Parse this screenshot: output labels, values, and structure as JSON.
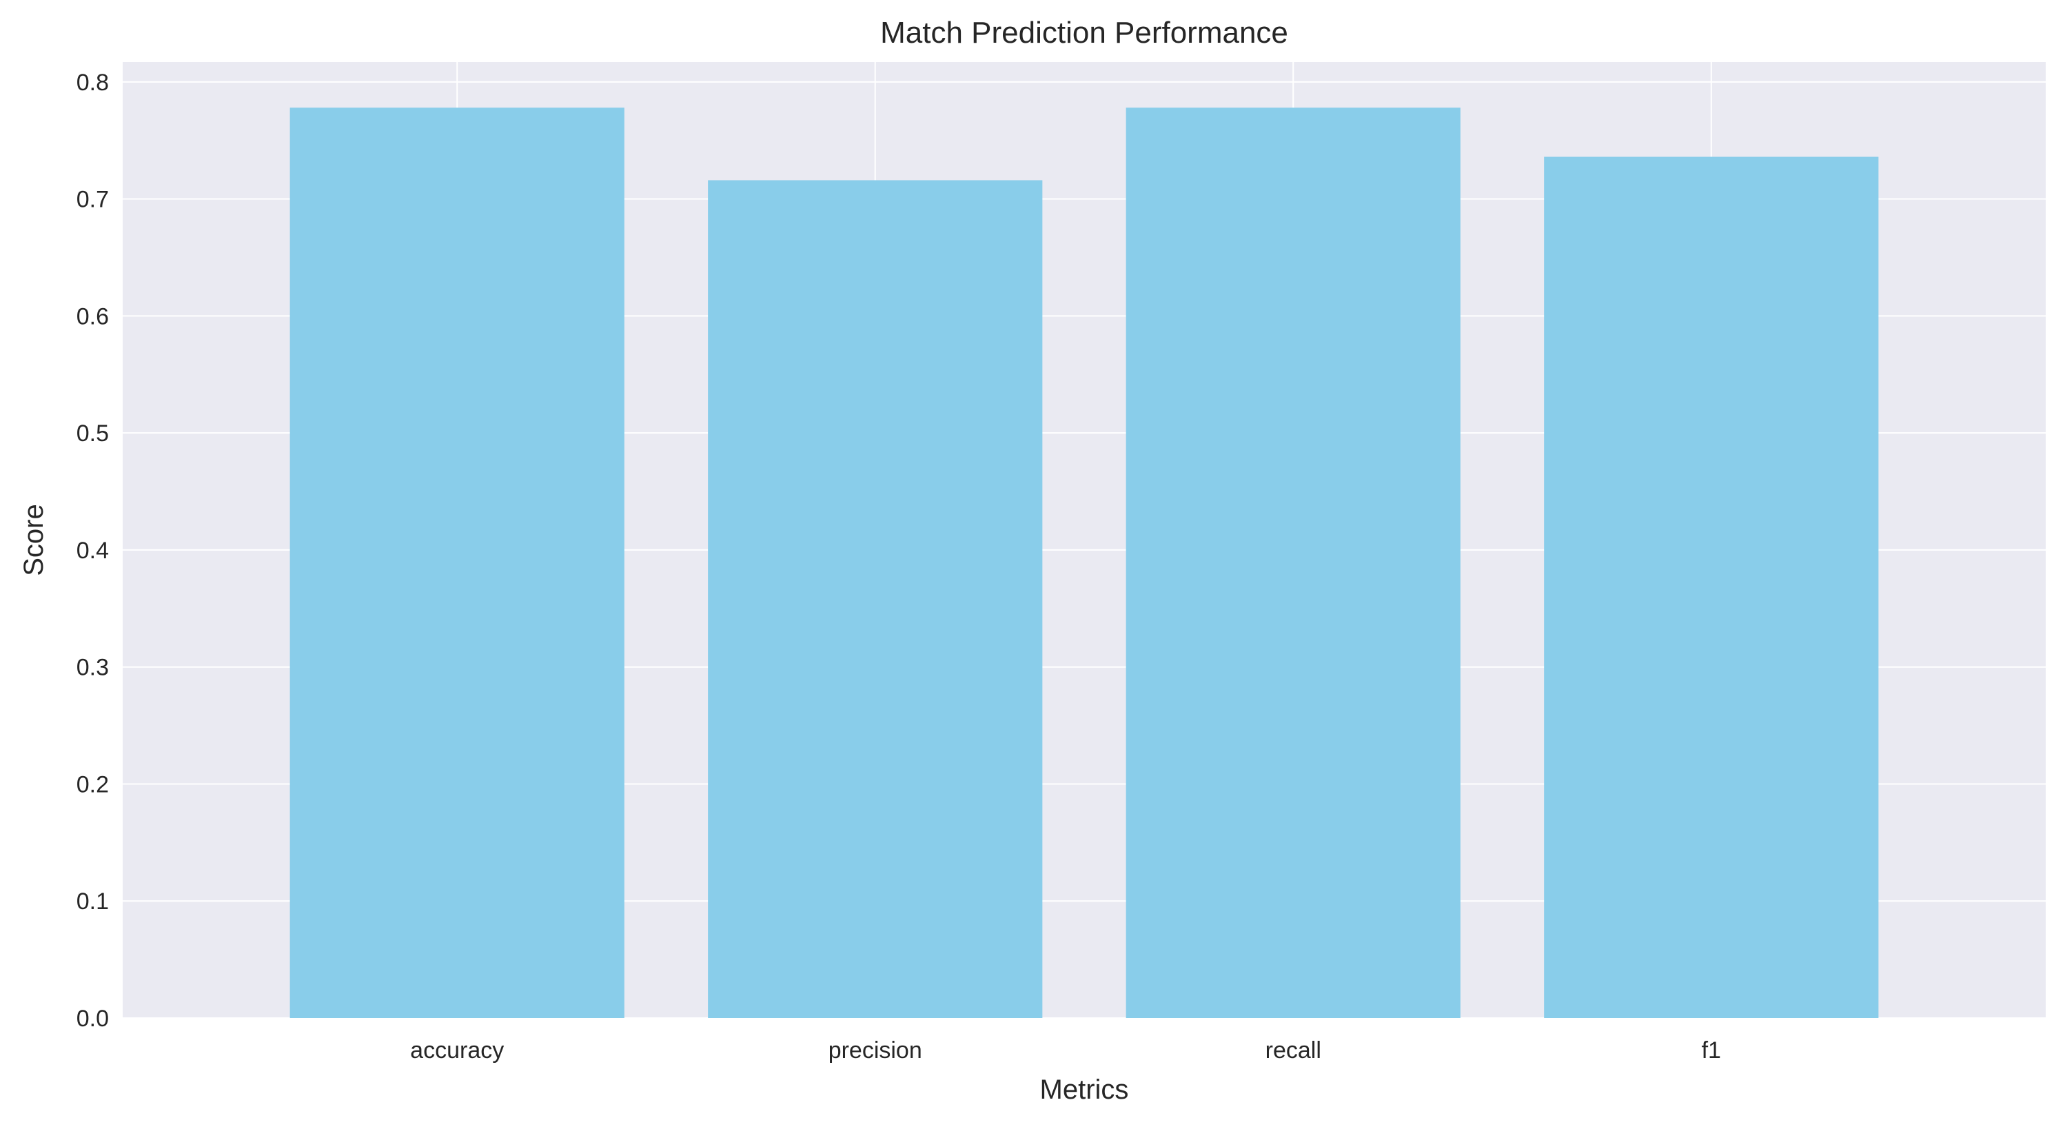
{
  "chart_data": {
    "type": "bar",
    "title": "Match Prediction Performance",
    "xlabel": "Metrics",
    "ylabel": "Score",
    "categories": [
      "accuracy",
      "precision",
      "recall",
      "f1"
    ],
    "values": [
      0.778,
      0.716,
      0.778,
      0.736
    ],
    "ylim": [
      0,
      0.817
    ],
    "yticks": [
      "0.0",
      "0.1",
      "0.2",
      "0.3",
      "0.4",
      "0.5",
      "0.6",
      "0.7",
      "0.8"
    ],
    "grid": true,
    "legend": "none",
    "colors": {
      "bar": "#89cdea",
      "plot_background": "#eaeaf2",
      "grid": "#ffffff",
      "text": "#262626"
    }
  }
}
